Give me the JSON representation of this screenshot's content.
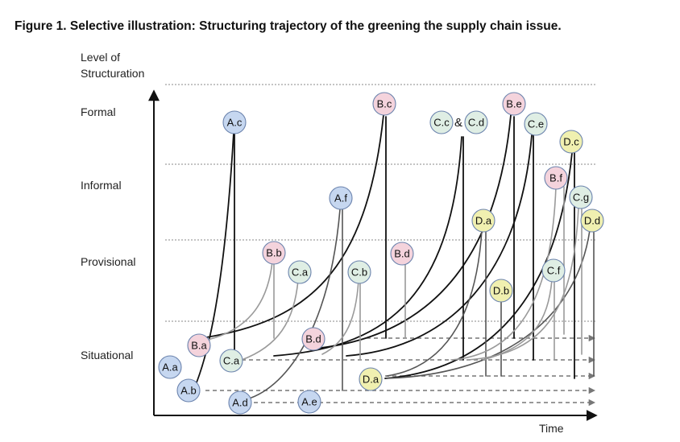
{
  "figure": {
    "title": "Figure 1.  Selective illustration: Structuring trajectory of the greening the supply chain issue."
  },
  "axes": {
    "y_title_line1": "Level of",
    "y_title_line2": "Structuration",
    "x_title": "Time",
    "levels": [
      "Formal",
      "Informal",
      "Provisional",
      "Situational"
    ]
  },
  "colors": {
    "A": "#c6d7f0",
    "B": "#f4d3dc",
    "C": "#dfeee4",
    "D": "#f0f0b0",
    "outline": "#6b83ad"
  },
  "nodes": [
    {
      "id": "A.a",
      "label": "A.a",
      "group": "A"
    },
    {
      "id": "A.b",
      "label": "A.b",
      "group": "A"
    },
    {
      "id": "A.c",
      "label": "A.c",
      "group": "A"
    },
    {
      "id": "A.d",
      "label": "A.d",
      "group": "A"
    },
    {
      "id": "A.e",
      "label": "A.e",
      "group": "A"
    },
    {
      "id": "A.f",
      "label": "A.f",
      "group": "A"
    },
    {
      "id": "B.a",
      "label": "B.a",
      "group": "B"
    },
    {
      "id": "B.b",
      "label": "B.b",
      "group": "B"
    },
    {
      "id": "B.c",
      "label": "B.c",
      "group": "B"
    },
    {
      "id": "B.d1",
      "label": "B.d",
      "group": "B"
    },
    {
      "id": "B.d2",
      "label": "B.d",
      "group": "B"
    },
    {
      "id": "B.e",
      "label": "B.e",
      "group": "B"
    },
    {
      "id": "B.f",
      "label": "B.f",
      "group": "B"
    },
    {
      "id": "C.a1",
      "label": "C.a",
      "group": "C"
    },
    {
      "id": "C.a2",
      "label": "C.a",
      "group": "C"
    },
    {
      "id": "C.b",
      "label": "C.b",
      "group": "C"
    },
    {
      "id": "C.c",
      "label": "C.c",
      "group": "C"
    },
    {
      "id": "C.d",
      "label": "C.d",
      "group": "C"
    },
    {
      "id": "C.e",
      "label": "C.e",
      "group": "C"
    },
    {
      "id": "C.f",
      "label": "C.f",
      "group": "C"
    },
    {
      "id": "C.g",
      "label": "C.g",
      "group": "C"
    },
    {
      "id": "D.a1",
      "label": "D.a",
      "group": "D"
    },
    {
      "id": "D.a2",
      "label": "D.a",
      "group": "D"
    },
    {
      "id": "D.b",
      "label": "D.b",
      "group": "D"
    },
    {
      "id": "D.c",
      "label": "D.c",
      "group": "D"
    },
    {
      "id": "D.d",
      "label": "D.d",
      "group": "D"
    }
  ],
  "ampersand": "&"
}
